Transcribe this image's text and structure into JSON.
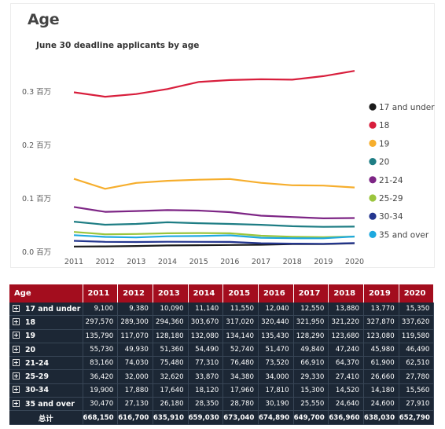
{
  "page": {
    "title": "Age",
    "subtitle": "June 30 deadline applicants by age"
  },
  "colors": {
    "table_header": "#a30d1e",
    "table_body": "#1c2735"
  },
  "chart_data": {
    "type": "line",
    "x": [
      2011,
      2012,
      2013,
      2014,
      2015,
      2016,
      2017,
      2018,
      2019,
      2020
    ],
    "ylim": [
      0,
      0.36
    ],
    "yticks": [
      {
        "value": 0.0,
        "label": "0.0 百万"
      },
      {
        "value": 0.1,
        "label": "0.1 百万"
      },
      {
        "value": 0.2,
        "label": "0.2 百万"
      },
      {
        "value": 0.3,
        "label": "0.3 百万"
      }
    ],
    "grid": false,
    "legend_position": "right",
    "series": [
      {
        "name": "17 and under",
        "color": "#1a1a1a",
        "values": [
          9100,
          9380,
          10090,
          11140,
          11550,
          12040,
          12550,
          13880,
          13770,
          15350
        ]
      },
      {
        "name": "18",
        "color": "#d81e3c",
        "values": [
          297570,
          289300,
          294360,
          303670,
          317020,
          320440,
          321950,
          321220,
          327870,
          337620
        ]
      },
      {
        "name": "19",
        "color": "#f6ae2d",
        "values": [
          135790,
          117070,
          128180,
          132080,
          134140,
          135430,
          128290,
          123680,
          123080,
          119580
        ]
      },
      {
        "name": "20",
        "color": "#1e7d84",
        "values": [
          55730,
          49930,
          51360,
          54490,
          52740,
          51470,
          49840,
          47240,
          45980,
          46490
        ]
      },
      {
        "name": "21-24",
        "color": "#7d2585",
        "values": [
          83160,
          74030,
          75480,
          77310,
          76480,
          73520,
          66910,
          64370,
          61900,
          62510
        ]
      },
      {
        "name": "25-29",
        "color": "#9bc53d",
        "values": [
          36420,
          32000,
          32620,
          33870,
          34380,
          34000,
          29330,
          27410,
          26660,
          27780
        ]
      },
      {
        "name": "30-34",
        "color": "#24368f",
        "values": [
          19900,
          17880,
          17640,
          18120,
          17960,
          17810,
          15300,
          14520,
          14180,
          15560
        ]
      },
      {
        "name": "35 and over",
        "color": "#1ea9df",
        "values": [
          30470,
          27130,
          26180,
          28350,
          28780,
          30190,
          25550,
          24640,
          24600,
          27910
        ]
      }
    ]
  },
  "table": {
    "header_label": "Age",
    "years": [
      "2011",
      "2012",
      "2013",
      "2014",
      "2015",
      "2016",
      "2017",
      "2018",
      "2019",
      "2020"
    ],
    "rows": [
      {
        "label": "17 and under",
        "cells": [
          "9,100",
          "9,380",
          "10,090",
          "11,140",
          "11,550",
          "12,040",
          "12,550",
          "13,880",
          "13,770",
          "15,350"
        ]
      },
      {
        "label": "18",
        "cells": [
          "297,570",
          "289,300",
          "294,360",
          "303,670",
          "317,020",
          "320,440",
          "321,950",
          "321,220",
          "327,870",
          "337,620"
        ]
      },
      {
        "label": "19",
        "cells": [
          "135,790",
          "117,070",
          "128,180",
          "132,080",
          "134,140",
          "135,430",
          "128,290",
          "123,680",
          "123,080",
          "119,580"
        ]
      },
      {
        "label": "20",
        "cells": [
          "55,730",
          "49,930",
          "51,360",
          "54,490",
          "52,740",
          "51,470",
          "49,840",
          "47,240",
          "45,980",
          "46,490"
        ]
      },
      {
        "label": "21-24",
        "cells": [
          "83,160",
          "74,030",
          "75,480",
          "77,310",
          "76,480",
          "73,520",
          "66,910",
          "64,370",
          "61,900",
          "62,510"
        ]
      },
      {
        "label": "25-29",
        "cells": [
          "36,420",
          "32,000",
          "32,620",
          "33,870",
          "34,380",
          "34,000",
          "29,330",
          "27,410",
          "26,660",
          "27,780"
        ]
      },
      {
        "label": "30-34",
        "cells": [
          "19,900",
          "17,880",
          "17,640",
          "18,120",
          "17,960",
          "17,810",
          "15,300",
          "14,520",
          "14,180",
          "15,560"
        ]
      },
      {
        "label": "35 and over",
        "cells": [
          "30,470",
          "27,130",
          "26,180",
          "28,350",
          "28,780",
          "30,190",
          "25,550",
          "24,640",
          "24,600",
          "27,910"
        ]
      }
    ],
    "total": {
      "label": "总计",
      "cells": [
        "668,150",
        "616,700",
        "635,910",
        "659,030",
        "673,040",
        "674,890",
        "649,700",
        "636,960",
        "638,030",
        "652,790"
      ]
    }
  }
}
